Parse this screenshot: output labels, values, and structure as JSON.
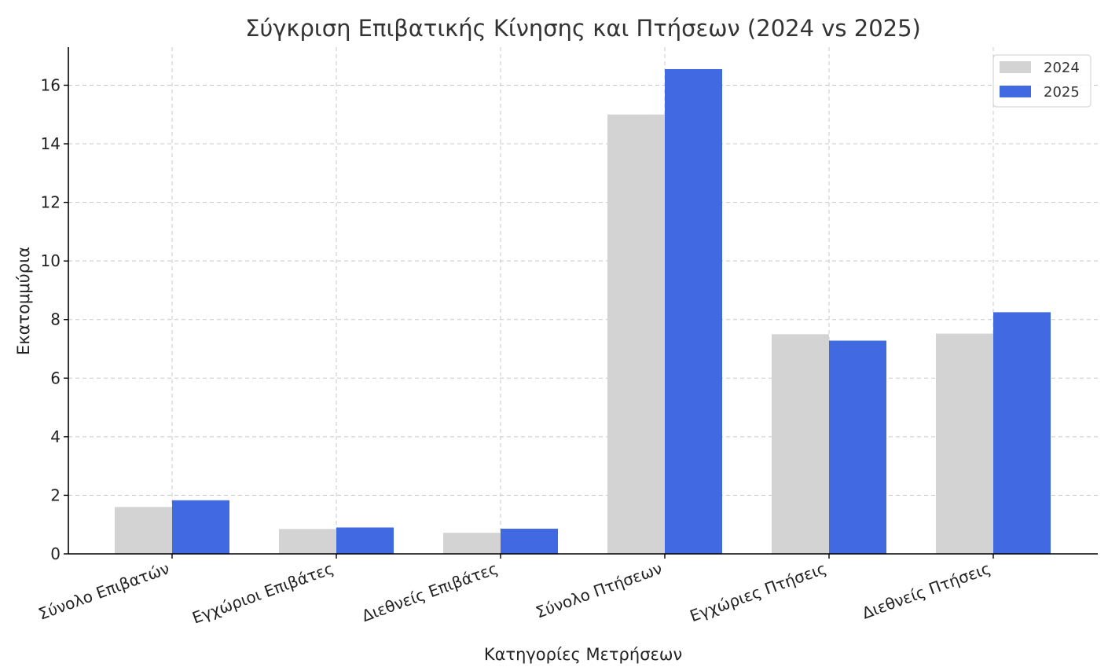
{
  "chart_data": {
    "type": "bar",
    "title": "Σύγκριση Επιβατικής Κίνησης και Πτήσεων (2024 vs 2025)",
    "xlabel": "Κατηγορίες Μετρήσεων",
    "ylabel": "Εκατομμύρια",
    "categories": [
      "Σύνολο Επιβατών",
      "Εγχώριοι Επιβάτες",
      "Διεθνείς Επιβάτες",
      "Σύνολο Πτήσεων",
      "Εγχώριες Πτήσεις",
      "Διεθνείς Πτήσεις"
    ],
    "series": [
      {
        "name": "2024",
        "color": "#d3d3d3",
        "values": [
          1.6,
          0.85,
          0.72,
          15.0,
          7.5,
          7.52
        ]
      },
      {
        "name": "2025",
        "color": "#4169e1",
        "values": [
          1.83,
          0.9,
          0.86,
          16.55,
          7.28,
          8.25
        ]
      }
    ],
    "ylim": [
      0,
      17.3
    ],
    "yticks": [
      0,
      2,
      4,
      6,
      8,
      10,
      12,
      14,
      16
    ],
    "grid": true,
    "legend_position": "top-right"
  }
}
